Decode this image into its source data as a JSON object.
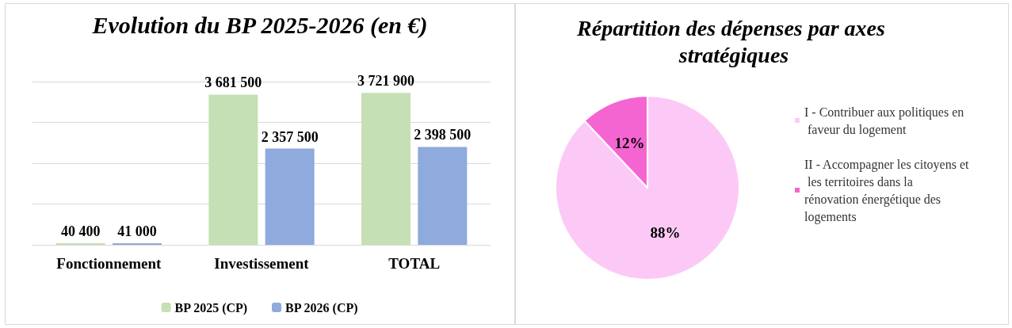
{
  "chart_data": [
    {
      "type": "bar",
      "title": "Evolution du BP 2025-2026 (en €)",
      "categories": [
        "Fonctionnement",
        "Investissement",
        "TOTAL"
      ],
      "series": [
        {
          "name": "BP 2025 (CP)",
          "color": "#c5e0b4",
          "values": [
            40400,
            3681500,
            3721900
          ],
          "value_labels": [
            "40 400",
            "3 681 500",
            "3 721 900"
          ]
        },
        {
          "name": "BP 2026 (CP)",
          "color": "#8faadc",
          "values": [
            41000,
            2357500,
            2398500
          ],
          "value_labels": [
            "41 000",
            "2 357 500",
            "2 398 500"
          ]
        }
      ],
      "ylim": [
        0,
        4000000
      ],
      "yticks": [
        {
          "value": 0,
          "label": null
        },
        {
          "value": 1000000,
          "label": null
        },
        {
          "value": 2000000,
          "label": null
        },
        {
          "value": 3000000,
          "label": null
        },
        {
          "value": 4000000,
          "label": null
        }
      ],
      "grid": "y",
      "legend": "bottom",
      "tick_labels": "x"
    },
    {
      "type": "pie",
      "title": "Répartition des dépenses par axes stratégiques",
      "categories": [
        "I - Contribuer aux politiques en faveur du logement",
        "II - Accompagner les citoyens et les territoires dans la rénovation énergétique des logements"
      ],
      "values": [
        88,
        12
      ],
      "value_labels": [
        "88%",
        "12%"
      ],
      "colors": [
        "#fcc9f7",
        "#f565d1"
      ],
      "legend": "right"
    }
  ]
}
